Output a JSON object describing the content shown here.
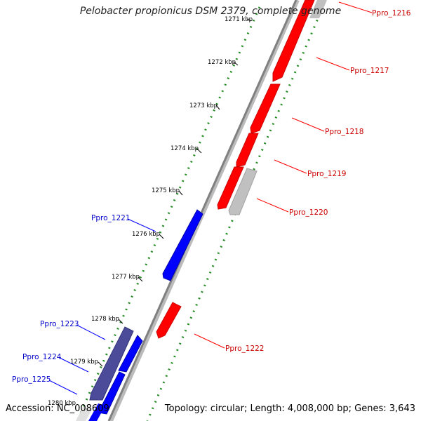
{
  "title": "Pelobacter propionicus DSM 2379, complete genome",
  "footer": {
    "accession": "Accession: NC_008609",
    "topology": "Topology: circular; Length: 4,008,000 bp; Genes: 3,643"
  },
  "colors": {
    "forward_gene": "#ff0000",
    "reverse_gene": "#0000ff",
    "grey_gene": "#c0c0c0",
    "dark_gene": "#4b4b9a",
    "gc_dots": "#228b22",
    "backbone": "#888888"
  },
  "ticks": [
    {
      "label": "1271 kbp"
    },
    {
      "label": "1272 kbp"
    },
    {
      "label": "1273 kbp"
    },
    {
      "label": "1274 kbp"
    },
    {
      "label": "1275 kbp"
    },
    {
      "label": "1276 kbp"
    },
    {
      "label": "1277 kbp"
    },
    {
      "label": "1278 kbp"
    },
    {
      "label": "1279 kbp"
    },
    {
      "label": "1280 kbp"
    }
  ],
  "gene_labels": [
    {
      "name": "Ppro_1216",
      "strand": "forward"
    },
    {
      "name": "Ppro_1217",
      "strand": "forward"
    },
    {
      "name": "Ppro_1218",
      "strand": "forward"
    },
    {
      "name": "Ppro_1219",
      "strand": "forward"
    },
    {
      "name": "Ppro_1220",
      "strand": "forward"
    },
    {
      "name": "Ppro_1221",
      "strand": "reverse"
    },
    {
      "name": "Ppro_1222",
      "strand": "forward"
    },
    {
      "name": "Ppro_1223",
      "strand": "reverse"
    },
    {
      "name": "Ppro_1224",
      "strand": "reverse"
    },
    {
      "name": "Ppro_1225",
      "strand": "reverse"
    }
  ]
}
